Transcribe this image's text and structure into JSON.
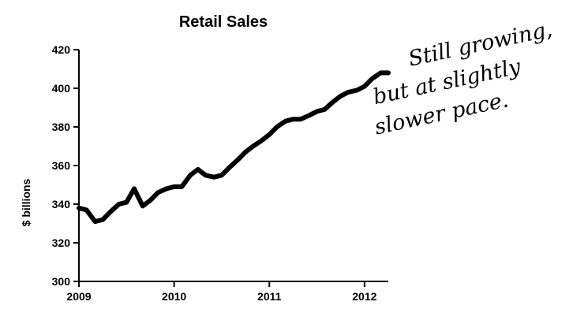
{
  "chart_data": {
    "type": "line",
    "title": "Retail Sales",
    "ylabel": "$ billions",
    "xlabel": "",
    "ylim": [
      300,
      420
    ],
    "yticks": [
      300,
      320,
      340,
      360,
      380,
      400,
      420
    ],
    "xlim": [
      2009.0,
      2012.25
    ],
    "xticks": [
      {
        "value": 2009,
        "label": "2009"
      },
      {
        "value": 2010,
        "label": "2010"
      },
      {
        "value": 2011,
        "label": "2011"
      },
      {
        "value": 2012,
        "label": "2012"
      }
    ],
    "grid": false,
    "legend": "none",
    "series": [
      {
        "color": "#000000",
        "points": [
          [
            2009.0,
            338
          ],
          [
            2009.08,
            337
          ],
          [
            2009.17,
            331
          ],
          [
            2009.25,
            332
          ],
          [
            2009.33,
            336
          ],
          [
            2009.42,
            340
          ],
          [
            2009.5,
            341
          ],
          [
            2009.58,
            348
          ],
          [
            2009.67,
            339
          ],
          [
            2009.75,
            342
          ],
          [
            2009.83,
            346
          ],
          [
            2009.92,
            348
          ],
          [
            2010.0,
            349
          ],
          [
            2010.08,
            349
          ],
          [
            2010.17,
            355
          ],
          [
            2010.25,
            358
          ],
          [
            2010.33,
            355
          ],
          [
            2010.42,
            354
          ],
          [
            2010.5,
            355
          ],
          [
            2010.58,
            359
          ],
          [
            2010.67,
            363
          ],
          [
            2010.75,
            367
          ],
          [
            2010.83,
            370
          ],
          [
            2010.92,
            373
          ],
          [
            2011.0,
            376
          ],
          [
            2011.08,
            380
          ],
          [
            2011.17,
            383
          ],
          [
            2011.25,
            384
          ],
          [
            2011.33,
            384
          ],
          [
            2011.42,
            386
          ],
          [
            2011.5,
            388
          ],
          [
            2011.58,
            389
          ],
          [
            2011.67,
            393
          ],
          [
            2011.75,
            396
          ],
          [
            2011.83,
            398
          ],
          [
            2011.92,
            399
          ],
          [
            2012.0,
            401
          ],
          [
            2012.08,
            405
          ],
          [
            2012.17,
            408
          ],
          [
            2012.25,
            408
          ]
        ]
      }
    ],
    "annotation": {
      "lines": [
        "Still growing,",
        "but at slightly",
        "slower pace."
      ],
      "style": "handwritten"
    }
  }
}
